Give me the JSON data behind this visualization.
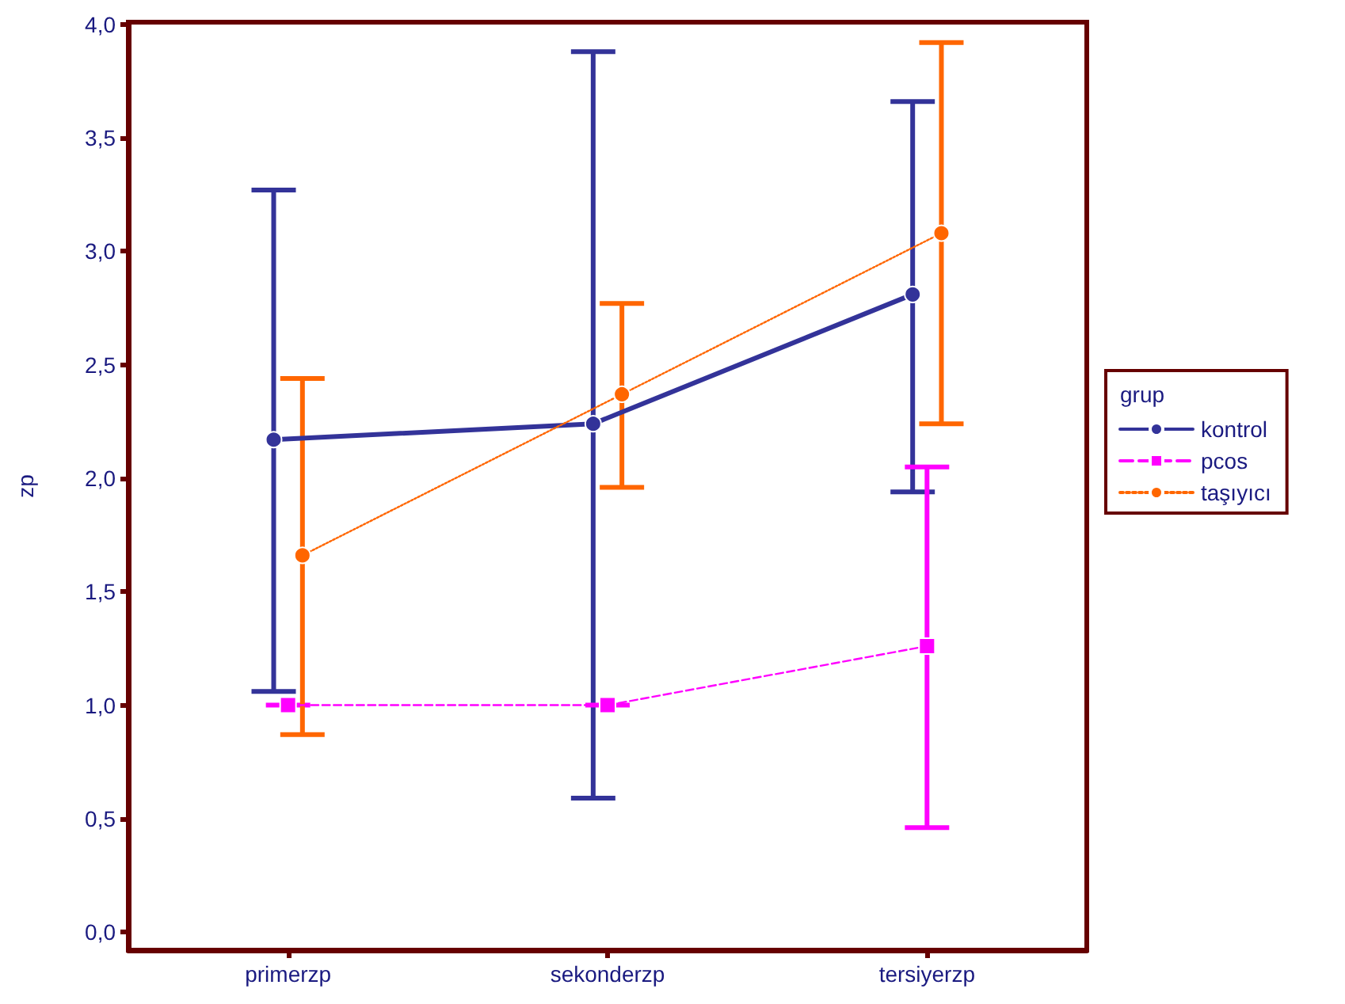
{
  "chart_data": {
    "type": "line",
    "ylabel": "zp",
    "legend_title": "grup",
    "categories": [
      "primerzp",
      "sekonderzp",
      "tersiyerzp"
    ],
    "series": [
      {
        "name": "kontrol",
        "color": "#333399",
        "marker": "circle",
        "line_style": "solid",
        "values": [
          2.17,
          2.24,
          2.81
        ],
        "errors": [
          [
            1.06,
            3.27
          ],
          [
            0.59,
            3.88
          ],
          [
            1.94,
            3.66
          ]
        ]
      },
      {
        "name": "pcos",
        "color": "#ff00ff",
        "marker": "square",
        "line_style": "dashed",
        "values": [
          1.0,
          1.0,
          1.26
        ],
        "errors": [
          [
            1.0,
            1.0
          ],
          [
            1.0,
            1.0
          ],
          [
            0.46,
            2.05
          ]
        ]
      },
      {
        "name": "taşıyıcı",
        "color": "#ff6600",
        "marker": "circle",
        "line_style": "dotted",
        "values": [
          1.66,
          2.37,
          3.08
        ],
        "errors": [
          [
            0.87,
            2.44
          ],
          [
            1.96,
            2.77
          ],
          [
            2.24,
            3.92
          ]
        ]
      }
    ],
    "ylim": [
      -0.08,
      4.01
    ],
    "yticks": [
      {
        "value": 0,
        "label": "0,0"
      },
      {
        "value": 0.5,
        "label": "0,5"
      },
      {
        "value": 1,
        "label": "1,0"
      },
      {
        "value": 1.5,
        "label": "1,5"
      },
      {
        "value": 2,
        "label": "2,0"
      },
      {
        "value": 2.5,
        "label": "2,5"
      },
      {
        "value": 3,
        "label": "3,0"
      },
      {
        "value": 3.5,
        "label": "3,5"
      },
      {
        "value": 4,
        "label": "4,0"
      }
    ],
    "grid": false,
    "legend": "right"
  }
}
